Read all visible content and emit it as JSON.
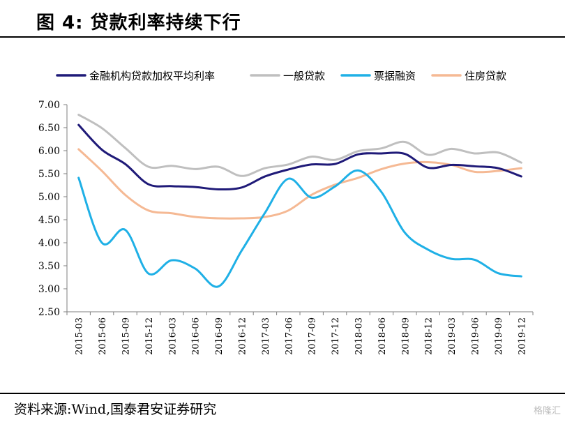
{
  "figure_title": "图 4: 贷款利率持续下行",
  "source_note": "资料来源:Wind,国泰君安证券研究",
  "watermark": "格隆汇",
  "chart_data": {
    "type": "line",
    "title": "",
    "xlabel": "",
    "ylabel": "",
    "ylim": [
      2.5,
      7.0
    ],
    "yticks": [
      "7.00",
      "6.50",
      "6.00",
      "5.50",
      "5.00",
      "4.50",
      "4.00",
      "3.50",
      "3.00",
      "2.50"
    ],
    "grid": false,
    "legend_position": "top",
    "x": [
      "2015-03",
      "2015-06",
      "2015-09",
      "2015-12",
      "2016-03",
      "2016-06",
      "2016-09",
      "2016-12",
      "2017-03",
      "2017-06",
      "2017-09",
      "2017-12",
      "2018-03",
      "2018-06",
      "2018-09",
      "2018-12",
      "2019-03",
      "2019-06",
      "2019-09",
      "2019-12"
    ],
    "series": [
      {
        "name": "金融机构贷款加权平均利率",
        "color": "#1f1a78",
        "values": [
          6.56,
          6.02,
          5.71,
          5.27,
          5.23,
          5.21,
          5.16,
          5.2,
          5.44,
          5.59,
          5.7,
          5.71,
          5.92,
          5.94,
          5.93,
          5.63,
          5.69,
          5.66,
          5.62,
          5.44
        ]
      },
      {
        "name": "一般贷款",
        "color": "#bfbfbf",
        "values": [
          6.78,
          6.49,
          6.06,
          5.65,
          5.67,
          5.6,
          5.65,
          5.45,
          5.62,
          5.7,
          5.87,
          5.8,
          5.99,
          6.05,
          6.19,
          5.91,
          6.04,
          5.94,
          5.96,
          5.74
        ]
      },
      {
        "name": "票据融资",
        "color": "#1fb0e6",
        "values": [
          5.41,
          4.0,
          4.28,
          3.33,
          3.62,
          3.44,
          3.05,
          3.83,
          4.65,
          5.39,
          4.98,
          5.22,
          5.57,
          5.1,
          4.22,
          3.85,
          3.65,
          3.63,
          3.34,
          3.27
        ]
      },
      {
        "name": "住房贷款",
        "color": "#f5b994",
        "values": [
          6.03,
          5.56,
          5.04,
          4.7,
          4.64,
          4.56,
          4.53,
          4.53,
          4.56,
          4.7,
          5.04,
          5.26,
          5.41,
          5.6,
          5.72,
          5.75,
          5.69,
          5.54,
          5.56,
          5.62
        ]
      }
    ]
  }
}
